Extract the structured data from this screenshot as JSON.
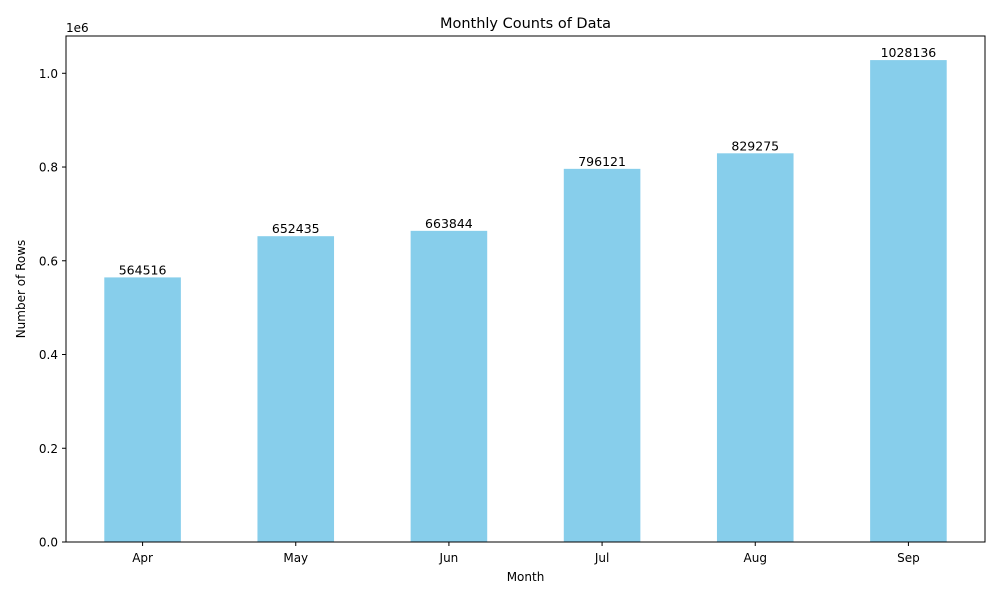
{
  "chart_data": {
    "type": "bar",
    "title": "Monthly Counts of Data",
    "xlabel": "Month",
    "ylabel": "Number of Rows",
    "axis_multiplier": "1e6",
    "categories": [
      "Apr",
      "May",
      "Jun",
      "Jul",
      "Aug",
      "Sep"
    ],
    "values": [
      564516,
      652435,
      663844,
      796121,
      829275,
      1028136
    ],
    "data_labels": [
      "564516",
      "652435",
      "663844",
      "796121",
      "829275",
      "1028136"
    ],
    "yticks": [
      0,
      200000,
      400000,
      600000,
      800000,
      1000000
    ],
    "ytick_labels": [
      "0.0",
      "0.2",
      "0.4",
      "0.6",
      "0.8",
      "1.0"
    ],
    "ylim": [
      0,
      1079543
    ],
    "bar_color": "#87ceeb",
    "grid": false,
    "legend": "none"
  }
}
